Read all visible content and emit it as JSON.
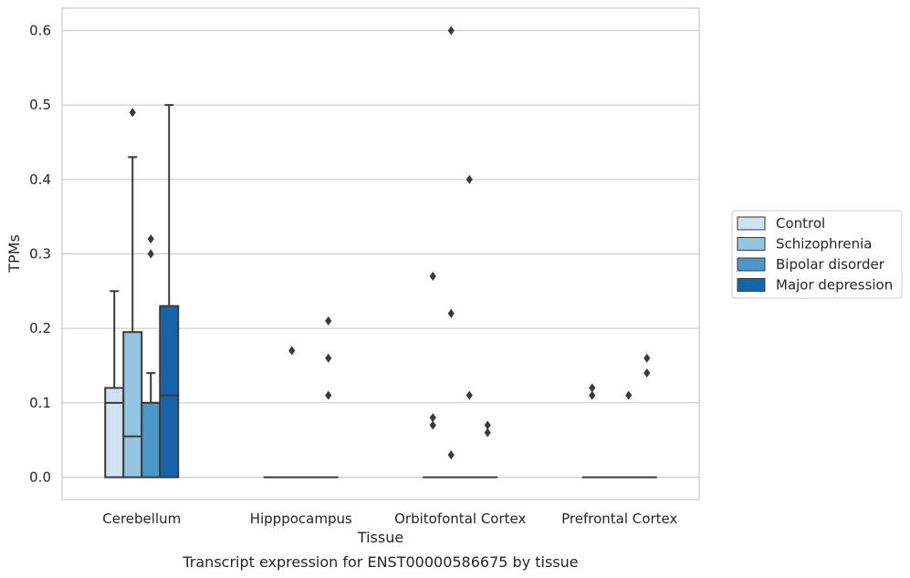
{
  "chart_data": {
    "type": "box",
    "caption": "Transcript expression for ENST00000586675 by tissue",
    "xlabel": "Tissue",
    "ylabel": "TPMs",
    "ylim": [
      -0.03,
      0.63
    ],
    "yticks": [
      0.0,
      0.1,
      0.2,
      0.3,
      0.4,
      0.5,
      0.6
    ],
    "ytick_labels": [
      "0.0",
      "0.1",
      "0.2",
      "0.3",
      "0.4",
      "0.5",
      "0.6"
    ],
    "grid": "horizontal",
    "legend_position": "right",
    "categories": [
      "Cerebellum",
      "Hipppocampus",
      "Orbitofontal Cortex",
      "Prefrontal Cortex"
    ],
    "series": [
      {
        "name": "Control",
        "color": "#d0e1f2"
      },
      {
        "name": "Schizophrenia",
        "color": "#94c4df"
      },
      {
        "name": "Bipolar disorder",
        "color": "#4a98c9"
      },
      {
        "name": "Major depression",
        "color": "#1764ab"
      }
    ],
    "boxes": [
      [
        {
          "q1": 0.0,
          "median": 0.1,
          "q3": 0.12,
          "whislo": 0.0,
          "whishi": 0.25,
          "fliers": []
        },
        {
          "q1": 0.0,
          "median": 0.055,
          "q3": 0.195,
          "whislo": 0.0,
          "whishi": 0.43,
          "fliers": [
            0.49
          ]
        },
        {
          "q1": 0.0,
          "median": 0.1,
          "q3": 0.1,
          "whislo": 0.0,
          "whishi": 0.14,
          "fliers": [
            0.3,
            0.32
          ]
        },
        {
          "q1": 0.0,
          "median": 0.11,
          "q3": 0.23,
          "whislo": 0.0,
          "whishi": 0.5,
          "fliers": []
        }
      ],
      [
        {
          "q1": 0.0,
          "median": 0.0,
          "q3": 0.0,
          "whislo": 0.0,
          "whishi": 0.0,
          "fliers": []
        },
        {
          "q1": 0.0,
          "median": 0.0,
          "q3": 0.0,
          "whislo": 0.0,
          "whishi": 0.0,
          "fliers": [
            0.17
          ]
        },
        {
          "q1": 0.0,
          "median": 0.0,
          "q3": 0.0,
          "whislo": 0.0,
          "whishi": 0.0,
          "fliers": []
        },
        {
          "q1": 0.0,
          "median": 0.0,
          "q3": 0.0,
          "whislo": 0.0,
          "whishi": 0.0,
          "fliers": [
            0.11,
            0.16,
            0.21
          ]
        }
      ],
      [
        {
          "q1": 0.0,
          "median": 0.0,
          "q3": 0.0,
          "whislo": 0.0,
          "whishi": 0.0,
          "fliers": [
            0.07,
            0.08,
            0.27
          ]
        },
        {
          "q1": 0.0,
          "median": 0.0,
          "q3": 0.0,
          "whislo": 0.0,
          "whishi": 0.0,
          "fliers": [
            0.03,
            0.22,
            0.6
          ]
        },
        {
          "q1": 0.0,
          "median": 0.0,
          "q3": 0.0,
          "whislo": 0.0,
          "whishi": 0.0,
          "fliers": [
            0.11,
            0.4
          ]
        },
        {
          "q1": 0.0,
          "median": 0.0,
          "q3": 0.0,
          "whislo": 0.0,
          "whishi": 0.0,
          "fliers": [
            0.06,
            0.07
          ]
        }
      ],
      [
        {
          "q1": 0.0,
          "median": 0.0,
          "q3": 0.0,
          "whislo": 0.0,
          "whishi": 0.0,
          "fliers": [
            0.11,
            0.12
          ]
        },
        {
          "q1": 0.0,
          "median": 0.0,
          "q3": 0.0,
          "whislo": 0.0,
          "whishi": 0.0,
          "fliers": []
        },
        {
          "q1": 0.0,
          "median": 0.0,
          "q3": 0.0,
          "whislo": 0.0,
          "whishi": 0.0,
          "fliers": [
            0.11
          ]
        },
        {
          "q1": 0.0,
          "median": 0.0,
          "q3": 0.0,
          "whislo": 0.0,
          "whishi": 0.0,
          "fliers": [
            0.14,
            0.16
          ]
        }
      ]
    ]
  }
}
